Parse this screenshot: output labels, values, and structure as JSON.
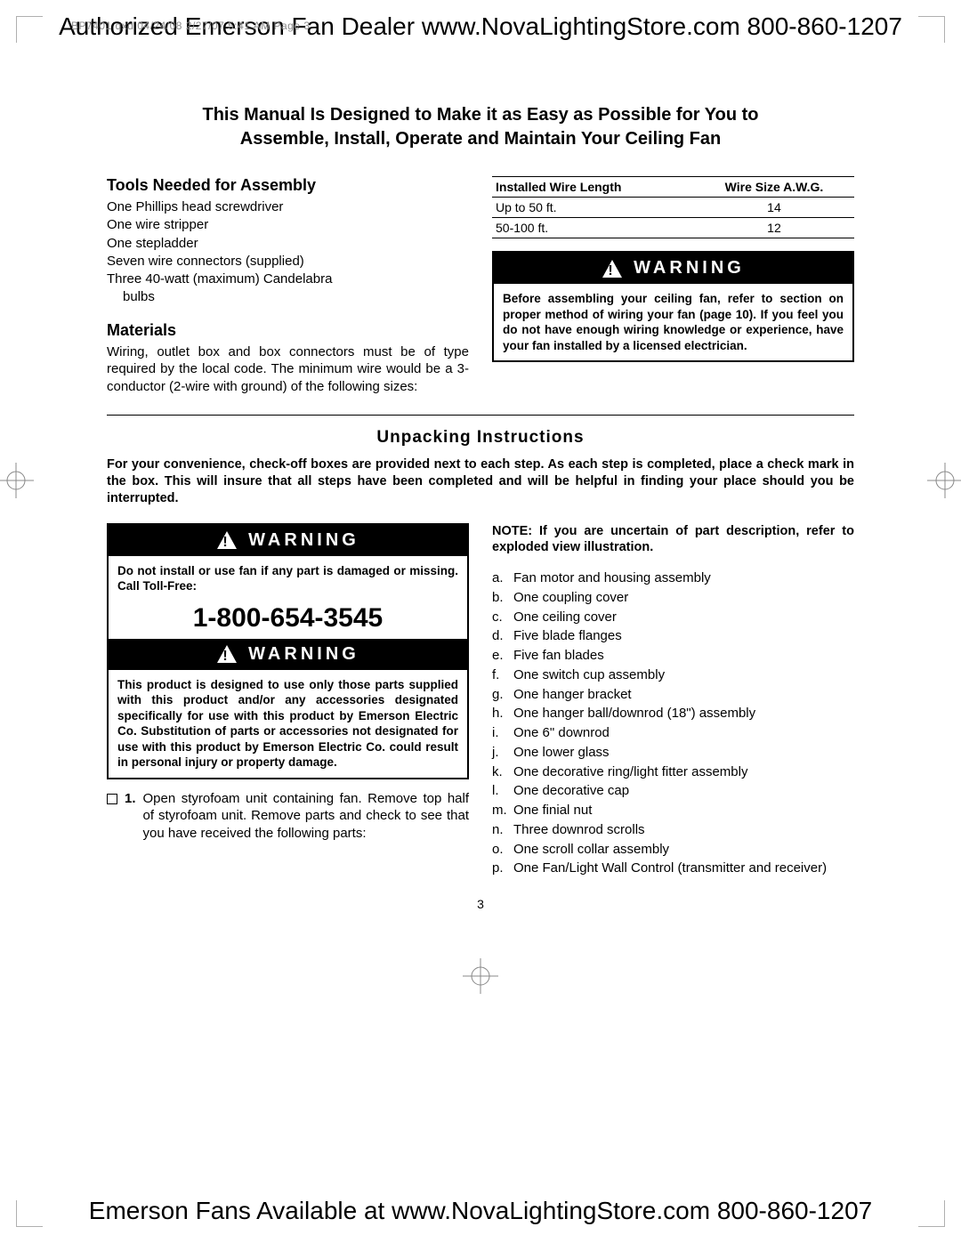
{
  "colors": {
    "text": "#000000",
    "bg": "#ffffff",
    "meta": "#8a8a8a",
    "crop": "#b0b0b0",
    "warn_bg": "#000000",
    "warn_fg": "#ffffff"
  },
  "header": "Authorized Emerson Fan Dealer www.NovaLightingStore.com 800-860-1207",
  "print_meta": "BP7401.qxd  04/24/08  2/27/07  5:41 AM  Page 3",
  "intro_line1": "This Manual Is Designed to Make it as Easy as Possible for You to",
  "intro_line2": "Assemble, Install, Operate and Maintain Your Ceiling Fan",
  "tools_heading": "Tools Needed for Assembly",
  "tools": [
    "One Phillips head screwdriver",
    "One wire stripper",
    "One stepladder",
    "Seven wire connectors (supplied)",
    "Three 40-watt (maximum) Candelabra"
  ],
  "tools_indent": "bulbs",
  "materials_heading": "Materials",
  "materials_text": "Wiring, outlet box and box connectors must be of type required by the local code. The minimum wire would be a 3-conductor (2-wire with ground) of the following sizes:",
  "wire_table": {
    "headers": [
      "Installed Wire Length",
      "Wire Size A.W.G."
    ],
    "rows": [
      [
        "Up to 50 ft.",
        "14"
      ],
      [
        "50-100 ft.",
        "12"
      ]
    ]
  },
  "warning_label": "WARNING",
  "warn1_text": "Before assembling your ceiling fan, refer to section on proper method of wiring your fan (page 10). If you feel you do not have enough wiring knowledge or experience, have your fan installed by a licensed electrician.",
  "unpacking_heading": "Unpacking Instructions",
  "unpacking_intro": "For your convenience, check-off boxes are provided next to each step. As each step is completed, place a check mark in the box. This will insure that all steps have been completed and will be helpful in finding your place should you be interrupted.",
  "warn2_text": "Do not install or use fan if any part is damaged or missing. Call Toll-Free:",
  "phone": "1-800-654-3545",
  "warn3_text": "This product is designed to use only those parts supplied with this product and/or any accessories designated specifically for use with this product by Emerson Electric Co. Substitution of parts or accessories not designated for use with this product by Emerson Electric Co. could result in personal injury or property damage.",
  "step1_num": "1.",
  "step1_text": "Open styrofoam unit containing fan. Remove top half of styrofoam unit. Remove parts and check to see that you have received the following parts:",
  "note_text": "NOTE: If you are uncertain of part description, refer to exploded view illustration.",
  "parts": [
    {
      "l": "a.",
      "t": "Fan motor and housing assembly"
    },
    {
      "l": "b.",
      "t": "One coupling cover"
    },
    {
      "l": "c.",
      "t": "One ceiling cover"
    },
    {
      "l": "d.",
      "t": "Five blade flanges"
    },
    {
      "l": "e.",
      "t": "Five fan blades"
    },
    {
      "l": "f.",
      "t": "One switch cup assembly"
    },
    {
      "l": "g.",
      "t": "One hanger bracket"
    },
    {
      "l": "h.",
      "t": "One hanger ball/downrod (18\") assembly"
    },
    {
      "l": "i.",
      "t": "One 6\" downrod"
    },
    {
      "l": "j.",
      "t": "One lower glass"
    },
    {
      "l": "k.",
      "t": "One decorative ring/light fitter assembly"
    },
    {
      "l": "l.",
      "t": "One decorative cap"
    },
    {
      "l": "m.",
      "t": "One finial nut"
    },
    {
      "l": "n.",
      "t": "Three downrod scrolls"
    },
    {
      "l": "o.",
      "t": "One scroll collar assembly"
    },
    {
      "l": "p.",
      "t": "One Fan/Light Wall Control (transmitter and receiver)"
    }
  ],
  "page_number": "3",
  "footer": "Emerson Fans Available at www.NovaLightingStore.com 800-860-1207"
}
